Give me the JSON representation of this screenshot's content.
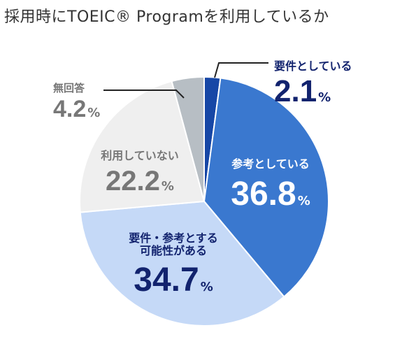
{
  "title": "採用時にTOEIC® Programを利用しているか",
  "chart_data": {
    "type": "pie",
    "slices": [
      {
        "label": "要件としている",
        "value": 2.1,
        "color": "#1747a6"
      },
      {
        "label": "参考としている",
        "value": 36.8,
        "color": "#3a78cf"
      },
      {
        "label": "要件・参考とする可能性がある",
        "value": 34.7,
        "color": "#c5d9f7"
      },
      {
        "label": "利用していない",
        "value": 22.2,
        "color": "#efefef"
      },
      {
        "label": "無回答",
        "value": 4.2,
        "color": "#b7bec4"
      }
    ],
    "unit": "%"
  },
  "labels": {
    "required": {
      "name": "要件としている",
      "value": "2.1",
      "unit": "%"
    },
    "reference": {
      "name": "参考としている",
      "value": "36.8",
      "unit": "%"
    },
    "possible": {
      "line1": "要件・参考とする",
      "line2": "可能性がある",
      "value": "34.7",
      "unit": "%"
    },
    "not_used": {
      "name": "利用していない",
      "value": "22.2",
      "unit": "%"
    },
    "no_answer": {
      "name": "無回答",
      "value": "4.2",
      "unit": "%"
    }
  }
}
